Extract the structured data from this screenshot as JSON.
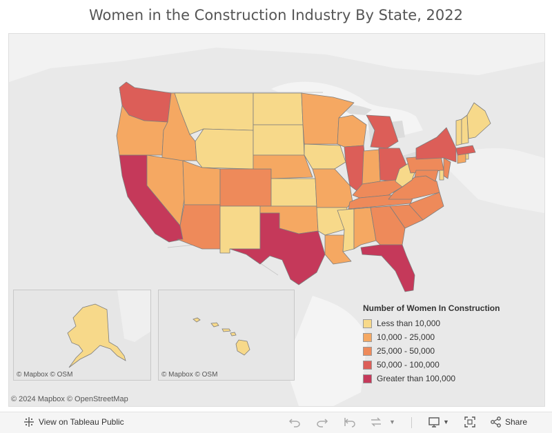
{
  "title": "Women in the Construction Industry By State, 2022",
  "map": {
    "credit_main": "© 2024 Mapbox  © OpenStreetMap",
    "credit_alaska": "© Mapbox  © OSM",
    "credit_hawaii": "© Mapbox  © OSM"
  },
  "legend": {
    "title": "Number of Women In Construction",
    "items": [
      {
        "label": "Less than 10,000",
        "color": "#f7d98a"
      },
      {
        "label": "10,000 - 25,000",
        "color": "#f5a862"
      },
      {
        "label": "25,000 - 50,000",
        "color": "#ee8a5a"
      },
      {
        "label": "50,000 - 100,000",
        "color": "#dc5e58"
      },
      {
        "label": "Greater than 100,000",
        "color": "#c5395a"
      }
    ]
  },
  "toolbar": {
    "view_label": "View on Tableau Public",
    "share_label": "Share"
  },
  "icons": [
    "tableau-icon",
    "undo-icon",
    "redo-icon",
    "revert-icon",
    "refresh-icon",
    "download-icon",
    "fullscreen-icon",
    "share-icon"
  ]
}
